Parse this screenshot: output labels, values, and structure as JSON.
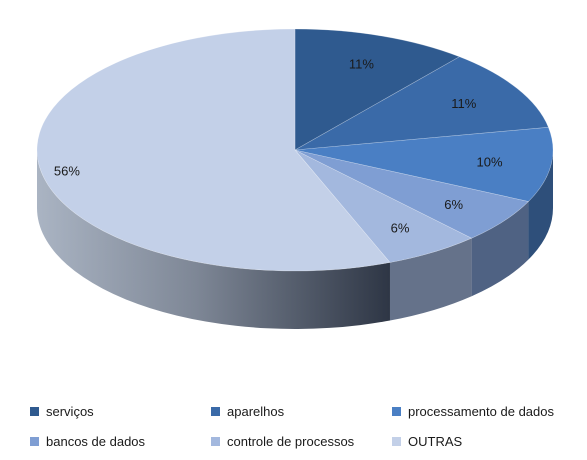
{
  "chart_data": {
    "type": "pie",
    "style": "3d",
    "title": "",
    "slices": [
      {
        "label": "serviços",
        "value": 11,
        "display": "11%",
        "color": "#2f5a8f"
      },
      {
        "label": "aparelhos",
        "value": 11,
        "display": "11%",
        "color": "#3a6aa8"
      },
      {
        "label": "processamento de dados",
        "value": 10,
        "display": "10%",
        "color": "#4a7fc4"
      },
      {
        "label": "bancos de dados",
        "value": 6,
        "display": "6%",
        "color": "#7f9ed3"
      },
      {
        "label": "controle de processos",
        "value": 6,
        "display": "6%",
        "color": "#a3b8de"
      },
      {
        "label": "OUTRAS",
        "value": 56,
        "display": "56%",
        "color": "#c3d0e8"
      }
    ],
    "legend_position": "bottom"
  }
}
